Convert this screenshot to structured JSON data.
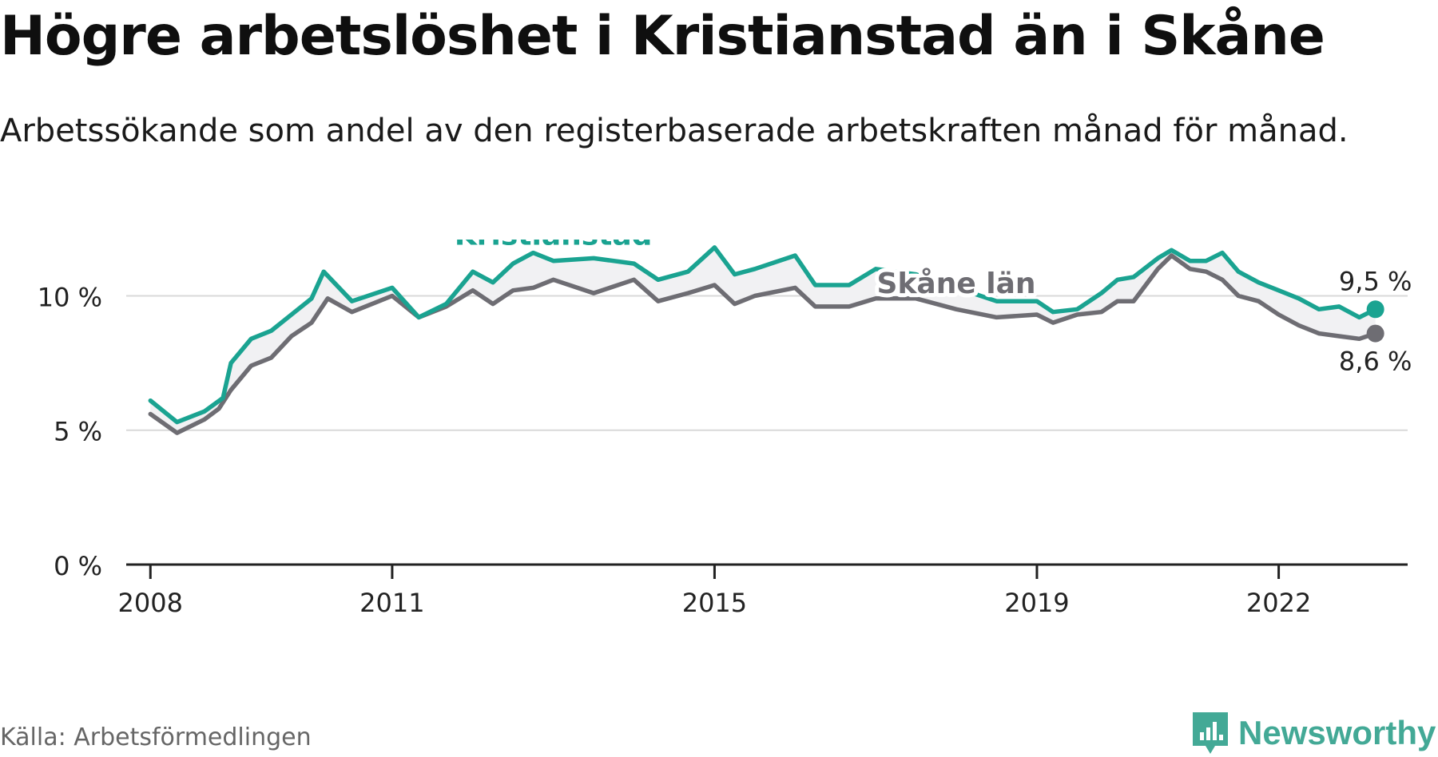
{
  "title": "Högre arbetslöshet i Kristianstad än i Skåne",
  "subtitle": "Arbetssökande som andel av den registerbaserade arbetskraften månad för månad.",
  "source": "Källa: Arbetsförmedlingen",
  "brand": {
    "name": "Newsworthy",
    "icon": "newsworthy-logo-icon",
    "color": "#43a996"
  },
  "chart_data": {
    "type": "line",
    "title": "Högre arbetslöshet i Kristianstad än i Skåne",
    "xlabel": "",
    "ylabel": "",
    "ylim": [
      0,
      11.5
    ],
    "xlim": [
      2007.7,
      2023.6
    ],
    "grid": true,
    "yticks": [
      {
        "value": 0,
        "label": "0 %"
      },
      {
        "value": 5,
        "label": "5 %"
      },
      {
        "value": 10,
        "label": "10 %"
      }
    ],
    "xticks": [
      {
        "value": 2008,
        "label": "2008"
      },
      {
        "value": 2011,
        "label": "2011"
      },
      {
        "value": 2015,
        "label": "2015"
      },
      {
        "value": 2019,
        "label": "2019"
      },
      {
        "value": 2022,
        "label": "2022"
      }
    ],
    "series": [
      {
        "name": "Kristianstad",
        "color": "#1aa391",
        "end_label": "9,5 %",
        "points": [
          [
            2008.0,
            6.1
          ],
          [
            2008.33,
            5.3
          ],
          [
            2008.67,
            5.7
          ],
          [
            2008.9,
            6.2
          ],
          [
            2009.0,
            7.5
          ],
          [
            2009.25,
            8.4
          ],
          [
            2009.5,
            8.7
          ],
          [
            2009.75,
            9.3
          ],
          [
            2010.0,
            9.9
          ],
          [
            2010.15,
            10.9
          ],
          [
            2010.5,
            9.8
          ],
          [
            2011.0,
            10.3
          ],
          [
            2011.33,
            9.2
          ],
          [
            2011.67,
            9.7
          ],
          [
            2012.0,
            10.9
          ],
          [
            2012.25,
            10.5
          ],
          [
            2012.5,
            11.2
          ],
          [
            2012.75,
            11.6
          ],
          [
            2013.0,
            11.3
          ],
          [
            2013.5,
            11.4
          ],
          [
            2014.0,
            11.2
          ],
          [
            2014.3,
            10.6
          ],
          [
            2014.67,
            10.9
          ],
          [
            2015.0,
            11.8
          ],
          [
            2015.25,
            10.8
          ],
          [
            2015.5,
            11.0
          ],
          [
            2016.0,
            11.5
          ],
          [
            2016.25,
            10.4
          ],
          [
            2016.67,
            10.4
          ],
          [
            2017.0,
            11.0
          ],
          [
            2017.5,
            10.8
          ],
          [
            2018.0,
            10.3
          ],
          [
            2018.5,
            9.8
          ],
          [
            2019.0,
            9.8
          ],
          [
            2019.2,
            9.4
          ],
          [
            2019.5,
            9.5
          ],
          [
            2019.8,
            10.1
          ],
          [
            2020.0,
            10.6
          ],
          [
            2020.2,
            10.7
          ],
          [
            2020.5,
            11.4
          ],
          [
            2020.67,
            11.7
          ],
          [
            2020.9,
            11.3
          ],
          [
            2021.1,
            11.3
          ],
          [
            2021.3,
            11.6
          ],
          [
            2021.5,
            10.9
          ],
          [
            2021.75,
            10.5
          ],
          [
            2022.0,
            10.2
          ],
          [
            2022.25,
            9.9
          ],
          [
            2022.5,
            9.5
          ],
          [
            2022.75,
            9.6
          ],
          [
            2023.0,
            9.2
          ],
          [
            2023.2,
            9.5
          ]
        ]
      },
      {
        "name": "Skåne län",
        "color": "#6e6d73",
        "end_label": "8,6 %",
        "points": [
          [
            2008.0,
            5.6
          ],
          [
            2008.33,
            4.9
          ],
          [
            2008.67,
            5.4
          ],
          [
            2008.85,
            5.8
          ],
          [
            2009.0,
            6.5
          ],
          [
            2009.25,
            7.4
          ],
          [
            2009.5,
            7.7
          ],
          [
            2009.75,
            8.5
          ],
          [
            2010.0,
            9.0
          ],
          [
            2010.2,
            9.9
          ],
          [
            2010.5,
            9.4
          ],
          [
            2011.0,
            10.0
          ],
          [
            2011.33,
            9.2
          ],
          [
            2011.67,
            9.6
          ],
          [
            2012.0,
            10.2
          ],
          [
            2012.25,
            9.7
          ],
          [
            2012.5,
            10.2
          ],
          [
            2012.75,
            10.3
          ],
          [
            2013.0,
            10.6
          ],
          [
            2013.5,
            10.1
          ],
          [
            2014.0,
            10.6
          ],
          [
            2014.3,
            9.8
          ],
          [
            2014.67,
            10.1
          ],
          [
            2015.0,
            10.4
          ],
          [
            2015.25,
            9.7
          ],
          [
            2015.5,
            10.0
          ],
          [
            2016.0,
            10.3
          ],
          [
            2016.25,
            9.6
          ],
          [
            2016.67,
            9.6
          ],
          [
            2017.0,
            9.9
          ],
          [
            2017.5,
            9.9
          ],
          [
            2018.0,
            9.5
          ],
          [
            2018.5,
            9.2
          ],
          [
            2019.0,
            9.3
          ],
          [
            2019.2,
            9.0
          ],
          [
            2019.5,
            9.3
          ],
          [
            2019.8,
            9.4
          ],
          [
            2020.0,
            9.8
          ],
          [
            2020.2,
            9.8
          ],
          [
            2020.5,
            11.0
          ],
          [
            2020.67,
            11.5
          ],
          [
            2020.9,
            11.0
          ],
          [
            2021.1,
            10.9
          ],
          [
            2021.3,
            10.6
          ],
          [
            2021.5,
            10.0
          ],
          [
            2021.75,
            9.8
          ],
          [
            2022.0,
            9.3
          ],
          [
            2022.25,
            8.9
          ],
          [
            2022.5,
            8.6
          ],
          [
            2022.75,
            8.5
          ],
          [
            2023.0,
            8.4
          ],
          [
            2023.2,
            8.6
          ]
        ]
      }
    ],
    "annotations": [
      {
        "text": "Kristianstad",
        "series": "Kristianstad",
        "x": 2013.0,
        "y": 11.9
      },
      {
        "text": "Skåne län",
        "series": "Skåne län",
        "x": 2018.0,
        "y": 10.1
      }
    ]
  }
}
